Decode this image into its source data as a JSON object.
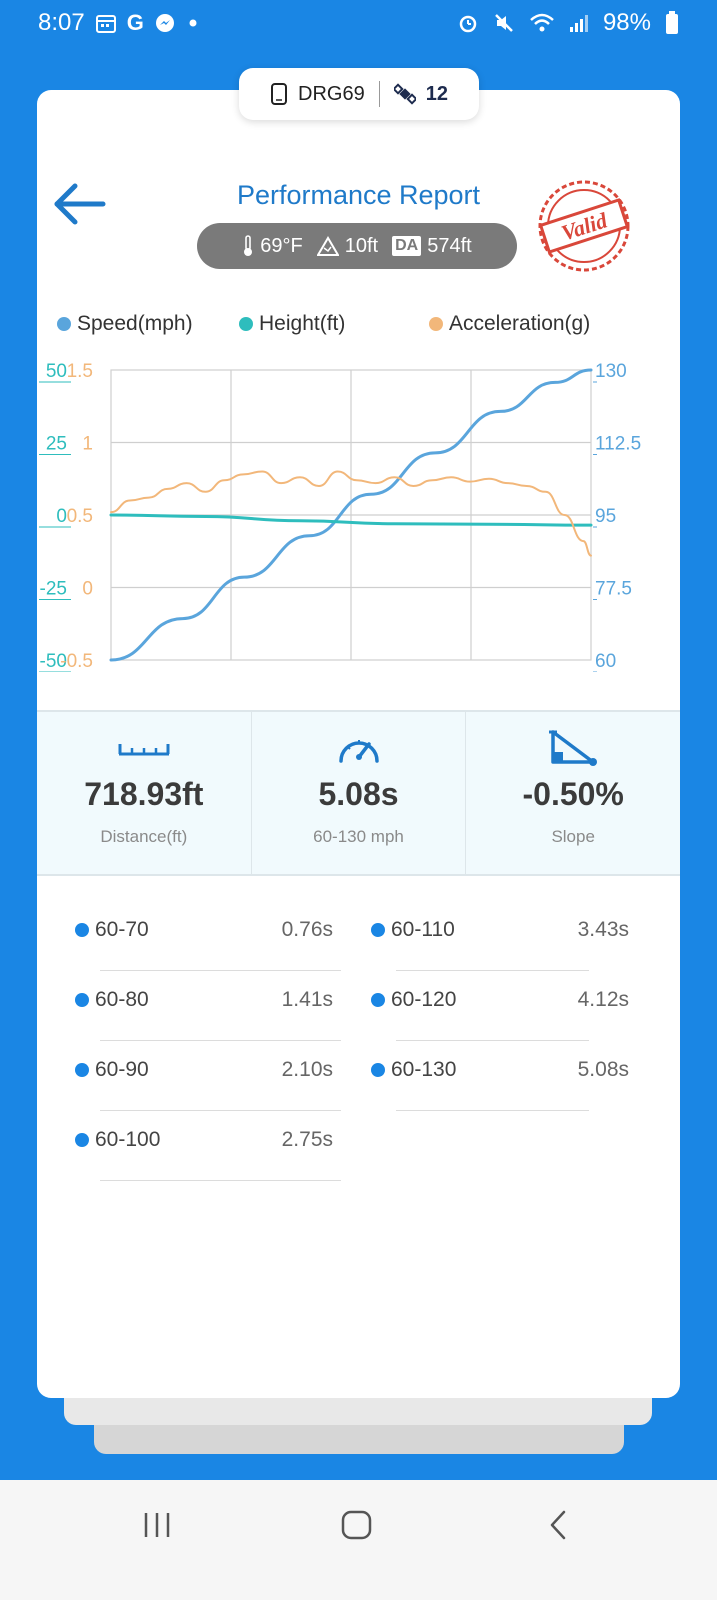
{
  "status": {
    "time": "8:07",
    "left_icons": [
      "calendar-icon",
      "google-icon",
      "messenger-icon",
      "dot-icon"
    ],
    "battery": "98%",
    "right_icons": [
      "alarm-icon",
      "mute-icon",
      "wifi-icon",
      "signal-icon",
      "battery-icon"
    ]
  },
  "device": {
    "name": "DRG69",
    "satellites": "12"
  },
  "header": {
    "title": "Performance Report",
    "stamp_text": "Valid"
  },
  "conditions": {
    "temperature": "69°F",
    "altitude": "10ft",
    "da_label": "DA",
    "density_altitude": "574ft"
  },
  "legend": [
    {
      "label": "Speed(mph)",
      "color": "#5aa5dc"
    },
    {
      "label": "Height(ft)",
      "color": "#2ebdbd"
    },
    {
      "label": "Acceleration(g)",
      "color": "#f2b77a"
    }
  ],
  "chart_data": {
    "type": "line",
    "axes": {
      "left_height": {
        "ticks": [
          "50",
          "25",
          "0",
          "-25",
          "-50"
        ],
        "range": [
          -50,
          50
        ],
        "color": "#2ebdbd"
      },
      "left_accel": {
        "ticks": [
          "1.5",
          "1",
          "0.5",
          "0",
          "-0.5"
        ],
        "range": [
          -0.5,
          1.5
        ],
        "color": "#f2b77a"
      },
      "right_speed": {
        "ticks": [
          "130",
          "112.5",
          "95",
          "77.5",
          "60"
        ],
        "range": [
          60,
          130
        ],
        "color": "#5aa5dc"
      }
    },
    "x_range": [
      0,
      5.08
    ],
    "grid": true,
    "series": [
      {
        "name": "Speed(mph)",
        "axis": "right_speed",
        "color": "#5aa5dc",
        "x": [
          0,
          0.76,
          1.41,
          2.1,
          2.75,
          3.43,
          4.12,
          4.7,
          5.08
        ],
        "y": [
          60,
          70,
          80,
          90,
          100,
          110,
          120,
          127,
          130
        ]
      },
      {
        "name": "Height(ft)",
        "axis": "left_height",
        "color": "#2ebdbd",
        "x": [
          0,
          1.0,
          2.0,
          3.0,
          4.0,
          5.08
        ],
        "y": [
          0,
          -0.5,
          -2,
          -3,
          -3.2,
          -3.5
        ]
      },
      {
        "name": "Acceleration(g)",
        "axis": "left_accel",
        "color": "#f2b77a",
        "x": [
          0,
          0.2,
          0.4,
          0.6,
          0.8,
          1.0,
          1.2,
          1.4,
          1.6,
          1.8,
          2.0,
          2.2,
          2.4,
          2.6,
          2.8,
          3.0,
          3.2,
          3.4,
          3.6,
          3.8,
          4.0,
          4.2,
          4.4,
          4.6,
          4.8,
          5.0,
          5.08
        ],
        "y": [
          0.52,
          0.6,
          0.62,
          0.68,
          0.72,
          0.66,
          0.74,
          0.78,
          0.8,
          0.72,
          0.76,
          0.7,
          0.8,
          0.74,
          0.72,
          0.76,
          0.7,
          0.74,
          0.76,
          0.73,
          0.75,
          0.72,
          0.7,
          0.66,
          0.5,
          0.32,
          0.22
        ]
      }
    ]
  },
  "stats": [
    {
      "icon": "ruler-icon",
      "value": "718.93ft",
      "label": "Distance(ft)"
    },
    {
      "icon": "speedometer-icon",
      "value": "5.08s",
      "label": "60-130 mph"
    },
    {
      "icon": "slope-icon",
      "value": "-0.50%",
      "label": "Slope"
    }
  ],
  "splits": [
    {
      "range": "60-70",
      "time": "0.76s"
    },
    {
      "range": "60-80",
      "time": "1.41s"
    },
    {
      "range": "60-90",
      "time": "2.10s"
    },
    {
      "range": "60-100",
      "time": "2.75s"
    },
    {
      "range": "60-110",
      "time": "3.43s"
    },
    {
      "range": "60-120",
      "time": "4.12s"
    },
    {
      "range": "60-130",
      "time": "5.08s"
    }
  ],
  "split_dot_color": "#1a86e4",
  "nav": [
    "recent-apps-icon",
    "home-icon",
    "back-icon"
  ]
}
